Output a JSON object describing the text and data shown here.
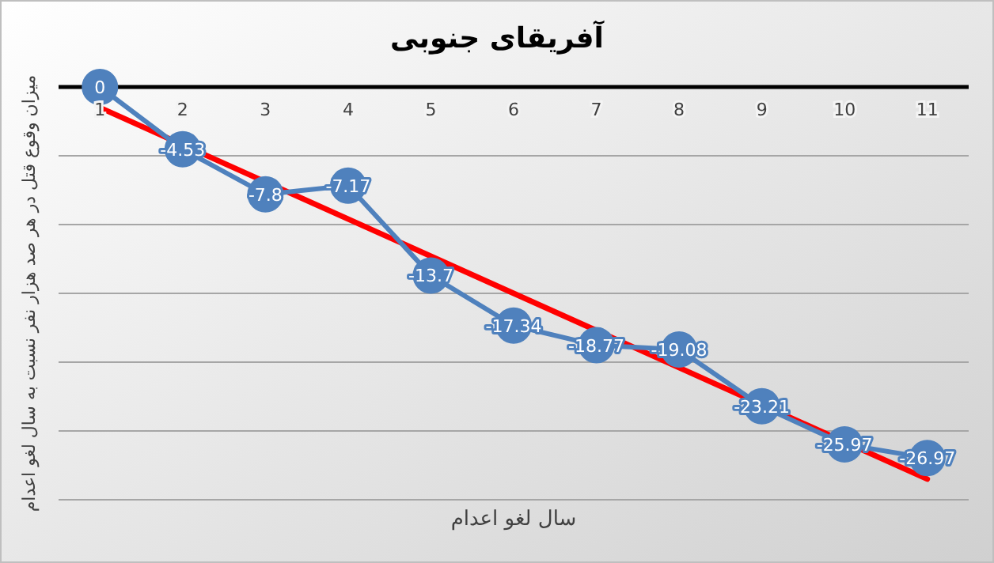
{
  "chart_data": {
    "type": "line",
    "title": "آفریقای جنوبی",
    "xlabel": "سال لغو اعدام",
    "ylabel": "میزان وقوع قتل در هر صد هزار نفر نسبت به سال لغو اعدام",
    "x": [
      1,
      2,
      3,
      4,
      5,
      6,
      7,
      8,
      9,
      10,
      11
    ],
    "xlim": [
      0.5,
      11.5
    ],
    "xticks": [
      1,
      2,
      3,
      4,
      5,
      6,
      7,
      8,
      9,
      10,
      11
    ],
    "ylim": [
      -30,
      0
    ],
    "yticks": [
      {
        "value": -30,
        "label": null
      },
      {
        "value": -25,
        "label": null
      },
      {
        "value": -20,
        "label": null
      },
      {
        "value": -15,
        "label": null
      },
      {
        "value": -10,
        "label": null
      },
      {
        "value": -5,
        "label": null
      },
      {
        "value": 0,
        "label": null
      }
    ],
    "tick_labels": "x",
    "grid": "y",
    "series": [
      {
        "color": "#4f81bd",
        "values": [
          0,
          -4.53,
          -7.8,
          -7.17,
          -13.7,
          -17.34,
          -18.77,
          -19.08,
          -23.21,
          -25.97,
          -26.97
        ],
        "marker": "circle",
        "data_labels": true
      },
      {
        "type": "line",
        "color": "#ff0000",
        "x": [
          1,
          11
        ],
        "values": [
          -1.5,
          -28.5
        ],
        "marker": "none"
      }
    ]
  }
}
